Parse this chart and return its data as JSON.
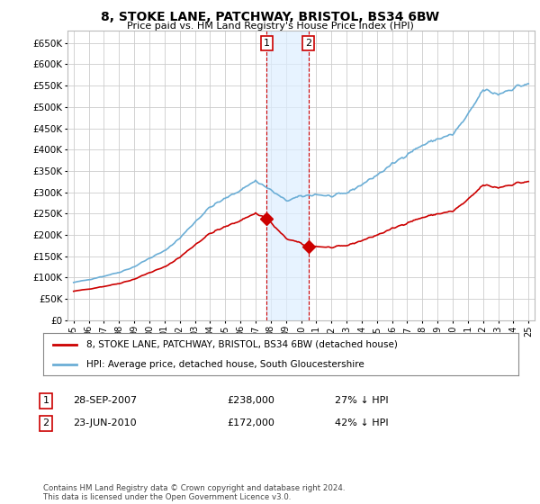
{
  "title": "8, STOKE LANE, PATCHWAY, BRISTOL, BS34 6BW",
  "subtitle": "Price paid vs. HM Land Registry's House Price Index (HPI)",
  "ylabel_ticks": [
    "£0",
    "£50K",
    "£100K",
    "£150K",
    "£200K",
    "£250K",
    "£300K",
    "£350K",
    "£400K",
    "£450K",
    "£500K",
    "£550K",
    "£600K",
    "£650K"
  ],
  "ytick_values": [
    0,
    50000,
    100000,
    150000,
    200000,
    250000,
    300000,
    350000,
    400000,
    450000,
    500000,
    550000,
    600000,
    650000
  ],
  "hpi_color": "#6baed6",
  "price_color": "#cc0000",
  "sale1_date": 2007.74,
  "sale1_price": 238000,
  "sale2_date": 2010.48,
  "sale2_price": 172000,
  "legend_entry1": "8, STOKE LANE, PATCHWAY, BRISTOL, BS34 6BW (detached house)",
  "legend_entry2": "HPI: Average price, detached house, South Gloucestershire",
  "annotation1_date": "28-SEP-2007",
  "annotation1_price": "£238,000",
  "annotation1_pct": "27% ↓ HPI",
  "annotation2_date": "23-JUN-2010",
  "annotation2_price": "£172,000",
  "annotation2_pct": "42% ↓ HPI",
  "footer": "Contains HM Land Registry data © Crown copyright and database right 2024.\nThis data is licensed under the Open Government Licence v3.0.",
  "background_color": "#ffffff",
  "grid_color": "#cccccc",
  "span_color": "#ddeeff",
  "vline_color": "#cc0000"
}
